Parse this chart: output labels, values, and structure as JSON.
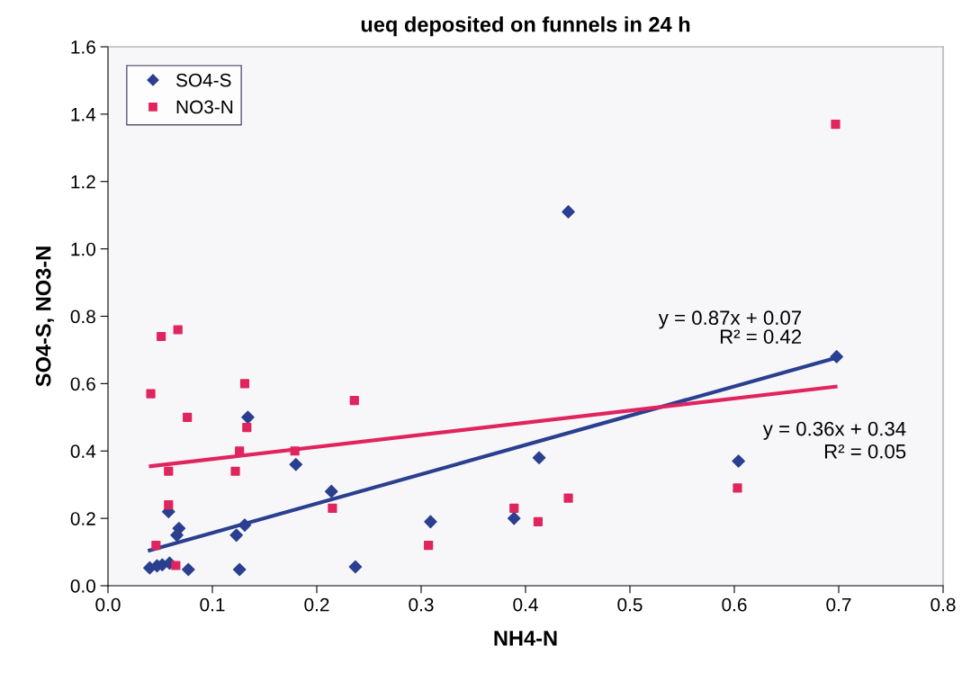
{
  "chart_data": {
    "type": "scatter",
    "title": "ueq deposited on funnels in 24 h",
    "xlabel": "NH4-N",
    "ylabel": "SO4-S, NO3-N",
    "xlim": [
      0.0,
      0.8
    ],
    "xticks": [
      {
        "value": 0.0,
        "label": "0.0"
      },
      {
        "value": 0.1,
        "label": "0.1"
      },
      {
        "value": 0.2,
        "label": "0.2"
      },
      {
        "value": 0.3,
        "label": "0.3"
      },
      {
        "value": 0.4,
        "label": "0.4"
      },
      {
        "value": 0.5,
        "label": "0.5"
      },
      {
        "value": 0.6,
        "label": "0.6"
      },
      {
        "value": 0.7,
        "label": "0.7"
      },
      {
        "value": 0.8,
        "label": "0.8"
      }
    ],
    "ylim": [
      0.0,
      1.6
    ],
    "yticks": [
      {
        "value": 0.0,
        "label": "0.0"
      },
      {
        "value": 0.2,
        "label": "0.2"
      },
      {
        "value": 0.4,
        "label": "0.4"
      },
      {
        "value": 0.6,
        "label": "0.6"
      },
      {
        "value": 0.8,
        "label": "0.8"
      },
      {
        "value": 1.0,
        "label": "1.0"
      },
      {
        "value": 1.2,
        "label": "1.2"
      },
      {
        "value": 1.4,
        "label": "1.4"
      },
      {
        "value": 1.6,
        "label": "1.6"
      }
    ],
    "grid": false,
    "legend": "top left",
    "series": [
      {
        "name": "SO4-S",
        "color": "#2a3f8f",
        "marker": "diamond",
        "x": [
          0.04,
          0.047,
          0.052,
          0.059,
          0.058,
          0.066,
          0.068,
          0.077,
          0.123,
          0.126,
          0.131,
          0.134,
          0.18,
          0.214,
          0.237,
          0.309,
          0.389,
          0.413,
          0.441,
          0.604,
          0.698
        ],
        "values": [
          0.053,
          0.059,
          0.062,
          0.067,
          0.22,
          0.15,
          0.17,
          0.048,
          0.15,
          0.048,
          0.18,
          0.5,
          0.36,
          0.28,
          0.056,
          0.19,
          0.2,
          0.38,
          1.11,
          0.37,
          0.68
        ]
      },
      {
        "name": "NO3-N",
        "color": "#e0245e",
        "marker": "square",
        "x": [
          0.041,
          0.051,
          0.067,
          0.076,
          0.058,
          0.058,
          0.046,
          0.065,
          0.131,
          0.133,
          0.126,
          0.122,
          0.236,
          0.179,
          0.215,
          0.307,
          0.389,
          0.412,
          0.441,
          0.603,
          0.697
        ],
        "values": [
          0.57,
          0.74,
          0.76,
          0.5,
          0.34,
          0.24,
          0.12,
          0.06,
          0.6,
          0.47,
          0.4,
          0.34,
          0.55,
          0.4,
          0.23,
          0.12,
          0.23,
          0.19,
          0.26,
          0.29,
          1.37
        ]
      },
      {
        "type": "line",
        "color": "#2a3f8f",
        "x": [
          0.04,
          0.698
        ],
        "values": [
          0.105,
          0.677
        ]
      },
      {
        "type": "line",
        "color": "#e0245e",
        "x": [
          0.041,
          0.697
        ],
        "values": [
          0.355,
          0.591
        ]
      }
    ],
    "annotations": [
      "y = 0.87x + 0.07",
      "R² = 0.42",
      "y = 0.36x + 0.34",
      "R² = 0.05"
    ]
  }
}
